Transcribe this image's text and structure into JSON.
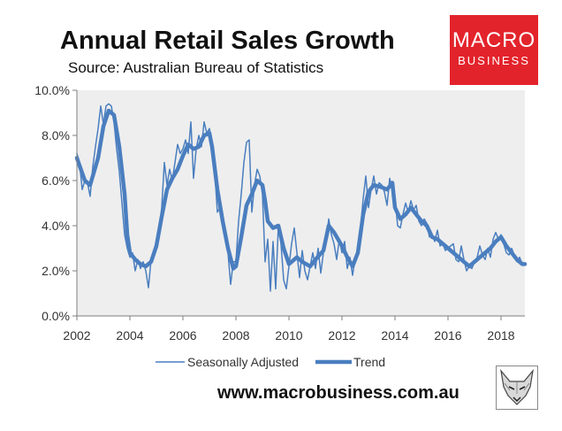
{
  "header": {
    "title": "Annual Retail Sales Growth",
    "subtitle": "Source: Australian Bureau of Statistics"
  },
  "logo": {
    "line1": "MACRO",
    "line2": "BUSINESS"
  },
  "footer": {
    "website": "www.macrobusiness.com.au"
  },
  "colors": {
    "series": "#4a7ebf",
    "plot_background": "#eeeeee",
    "axis": "#7f7f7f",
    "logo_background": "#e3232b"
  },
  "icons": {
    "mascot": "fox-head-icon"
  },
  "chart_data": {
    "type": "line",
    "title": "Annual Retail Sales Growth",
    "subtitle": "Source: Australian Bureau of Statistics",
    "xlim": [
      2002,
      2018.9
    ],
    "ylim": [
      0,
      10
    ],
    "x_ticks": [
      2002,
      2004,
      2006,
      2008,
      2010,
      2012,
      2014,
      2016,
      2018
    ],
    "x_tick_labels": [
      "2002",
      "2004",
      "2006",
      "2008",
      "2010",
      "2012",
      "2014",
      "2016",
      "2018"
    ],
    "y_ticks": [
      0,
      2,
      4,
      6,
      8,
      10
    ],
    "y_tick_labels": [
      "0.0%",
      "2.0%",
      "4.0%",
      "6.0%",
      "8.0%",
      "10.0%"
    ],
    "grid": false,
    "legend_position": "bottom",
    "series": [
      {
        "name": "Seasonally Adjusted",
        "line_width": "thin",
        "points": [
          [
            2002.0,
            7.2
          ],
          [
            2002.1,
            6.8
          ],
          [
            2002.2,
            5.6
          ],
          [
            2002.3,
            6.0
          ],
          [
            2002.4,
            5.9
          ],
          [
            2002.5,
            5.3
          ],
          [
            2002.6,
            6.6
          ],
          [
            2002.7,
            7.5
          ],
          [
            2002.8,
            8.3
          ],
          [
            2002.9,
            9.3
          ],
          [
            2003.0,
            8.5
          ],
          [
            2003.1,
            9.3
          ],
          [
            2003.2,
            9.4
          ],
          [
            2003.3,
            9.3
          ],
          [
            2003.4,
            8.6
          ],
          [
            2003.5,
            7.4
          ],
          [
            2003.6,
            6.4
          ],
          [
            2003.7,
            5.0
          ],
          [
            2003.8,
            3.6
          ],
          [
            2003.9,
            3.0
          ],
          [
            2004.0,
            2.6
          ],
          [
            2004.1,
            2.8
          ],
          [
            2004.2,
            2.0
          ],
          [
            2004.3,
            2.5
          ],
          [
            2004.4,
            2.1
          ],
          [
            2004.5,
            2.4
          ],
          [
            2004.6,
            2.0
          ],
          [
            2004.7,
            1.25
          ],
          [
            2004.8,
            2.5
          ],
          [
            2004.9,
            2.7
          ],
          [
            2005.0,
            3.4
          ],
          [
            2005.1,
            3.8
          ],
          [
            2005.2,
            4.8
          ],
          [
            2005.3,
            6.8
          ],
          [
            2005.4,
            5.8
          ],
          [
            2005.5,
            6.5
          ],
          [
            2005.6,
            6.0
          ],
          [
            2005.7,
            6.8
          ],
          [
            2005.8,
            7.6
          ],
          [
            2005.9,
            7.2
          ],
          [
            2006.0,
            7.4
          ],
          [
            2006.1,
            7.8
          ],
          [
            2006.2,
            7.2
          ],
          [
            2006.3,
            8.6
          ],
          [
            2006.4,
            6.1
          ],
          [
            2006.5,
            7.4
          ],
          [
            2006.6,
            8.0
          ],
          [
            2006.7,
            7.5
          ],
          [
            2006.8,
            8.6
          ],
          [
            2006.9,
            8.1
          ],
          [
            2007.0,
            8.3
          ],
          [
            2007.1,
            7.7
          ],
          [
            2007.2,
            6.4
          ],
          [
            2007.3,
            4.6
          ],
          [
            2007.4,
            4.8
          ],
          [
            2007.5,
            4.2
          ],
          [
            2007.6,
            3.4
          ],
          [
            2007.7,
            2.8
          ],
          [
            2007.8,
            1.4
          ],
          [
            2007.9,
            2.4
          ],
          [
            2008.0,
            2.4
          ],
          [
            2008.1,
            4.2
          ],
          [
            2008.2,
            5.4
          ],
          [
            2008.3,
            6.8
          ],
          [
            2008.4,
            7.7
          ],
          [
            2008.5,
            7.8
          ],
          [
            2008.6,
            4.6
          ],
          [
            2008.7,
            5.8
          ],
          [
            2008.8,
            6.5
          ],
          [
            2008.9,
            6.2
          ],
          [
            2009.0,
            5.4
          ],
          [
            2009.1,
            2.4
          ],
          [
            2009.2,
            3.4
          ],
          [
            2009.3,
            1.1
          ],
          [
            2009.4,
            3.3
          ],
          [
            2009.5,
            1.2
          ],
          [
            2009.6,
            4.0
          ],
          [
            2009.7,
            3.2
          ],
          [
            2009.8,
            1.6
          ],
          [
            2009.9,
            1.2
          ],
          [
            2010.0,
            2.2
          ],
          [
            2010.1,
            3.2
          ],
          [
            2010.2,
            3.9
          ],
          [
            2010.3,
            2.8
          ],
          [
            2010.4,
            1.7
          ],
          [
            2010.5,
            2.9
          ],
          [
            2010.6,
            2.0
          ],
          [
            2010.7,
            1.6
          ],
          [
            2010.8,
            2.2
          ],
          [
            2010.9,
            2.8
          ],
          [
            2011.0,
            2.1
          ],
          [
            2011.1,
            3.0
          ],
          [
            2011.2,
            1.9
          ],
          [
            2011.3,
            2.8
          ],
          [
            2011.4,
            3.3
          ],
          [
            2011.5,
            4.3
          ],
          [
            2011.6,
            3.6
          ],
          [
            2011.7,
            3.2
          ],
          [
            2011.8,
            2.5
          ],
          [
            2011.9,
            3.4
          ],
          [
            2012.0,
            2.8
          ],
          [
            2012.1,
            3.3
          ],
          [
            2012.2,
            2.1
          ],
          [
            2012.3,
            2.6
          ],
          [
            2012.4,
            1.8
          ],
          [
            2012.5,
            2.6
          ],
          [
            2012.6,
            3.0
          ],
          [
            2012.7,
            3.9
          ],
          [
            2012.8,
            5.2
          ],
          [
            2012.9,
            6.2
          ],
          [
            2013.0,
            4.8
          ],
          [
            2013.1,
            5.6
          ],
          [
            2013.2,
            6.2
          ],
          [
            2013.3,
            5.4
          ],
          [
            2013.4,
            5.9
          ],
          [
            2013.5,
            5.8
          ],
          [
            2013.6,
            5.5
          ],
          [
            2013.7,
            4.9
          ],
          [
            2013.8,
            6.1
          ],
          [
            2013.9,
            5.6
          ],
          [
            2014.0,
            5.2
          ],
          [
            2014.1,
            4.0
          ],
          [
            2014.2,
            3.9
          ],
          [
            2014.3,
            4.5
          ],
          [
            2014.4,
            5.0
          ],
          [
            2014.5,
            4.6
          ],
          [
            2014.6,
            5.1
          ],
          [
            2014.7,
            4.7
          ],
          [
            2014.8,
            4.9
          ],
          [
            2014.9,
            4.2
          ],
          [
            2015.0,
            4.0
          ],
          [
            2015.1,
            4.3
          ],
          [
            2015.2,
            4.1
          ],
          [
            2015.3,
            3.5
          ],
          [
            2015.4,
            3.6
          ],
          [
            2015.5,
            3.3
          ],
          [
            2015.6,
            3.8
          ],
          [
            2015.7,
            3.1
          ],
          [
            2015.8,
            3.2
          ],
          [
            2015.9,
            2.9
          ],
          [
            2016.0,
            3.0
          ],
          [
            2016.1,
            3.1
          ],
          [
            2016.2,
            3.2
          ],
          [
            2016.3,
            2.5
          ],
          [
            2016.4,
            2.4
          ],
          [
            2016.5,
            3.1
          ],
          [
            2016.6,
            2.5
          ],
          [
            2016.7,
            2.0
          ],
          [
            2016.8,
            2.2
          ],
          [
            2016.9,
            2.1
          ],
          [
            2017.0,
            2.4
          ],
          [
            2017.1,
            2.6
          ],
          [
            2017.2,
            3.1
          ],
          [
            2017.3,
            2.7
          ],
          [
            2017.4,
            2.5
          ],
          [
            2017.5,
            3.0
          ],
          [
            2017.6,
            2.6
          ],
          [
            2017.7,
            3.4
          ],
          [
            2017.8,
            3.7
          ],
          [
            2017.9,
            3.4
          ],
          [
            2018.0,
            3.6
          ],
          [
            2018.1,
            3.2
          ],
          [
            2018.2,
            2.8
          ],
          [
            2018.3,
            2.7
          ],
          [
            2018.4,
            3.0
          ],
          [
            2018.5,
            2.7
          ],
          [
            2018.6,
            2.4
          ],
          [
            2018.7,
            2.6
          ],
          [
            2018.8,
            2.3
          ],
          [
            2018.9,
            2.3
          ]
        ]
      },
      {
        "name": "Trend",
        "line_width": "thick",
        "points": [
          [
            2002.0,
            7.0
          ],
          [
            2002.3,
            6.0
          ],
          [
            2002.5,
            5.8
          ],
          [
            2002.8,
            7.0
          ],
          [
            2003.0,
            8.4
          ],
          [
            2003.2,
            9.1
          ],
          [
            2003.4,
            8.9
          ],
          [
            2003.6,
            7.5
          ],
          [
            2003.8,
            5.4
          ],
          [
            2003.9,
            3.6
          ],
          [
            2004.0,
            2.8
          ],
          [
            2004.2,
            2.5
          ],
          [
            2004.4,
            2.3
          ],
          [
            2004.6,
            2.2
          ],
          [
            2004.8,
            2.4
          ],
          [
            2005.0,
            3.1
          ],
          [
            2005.2,
            4.4
          ],
          [
            2005.4,
            5.6
          ],
          [
            2005.6,
            6.1
          ],
          [
            2005.8,
            6.5
          ],
          [
            2006.0,
            7.1
          ],
          [
            2006.2,
            7.6
          ],
          [
            2006.4,
            7.4
          ],
          [
            2006.6,
            7.5
          ],
          [
            2006.8,
            8.0
          ],
          [
            2007.0,
            8.1
          ],
          [
            2007.1,
            7.5
          ],
          [
            2007.3,
            5.6
          ],
          [
            2007.5,
            4.2
          ],
          [
            2007.7,
            3.0
          ],
          [
            2007.9,
            2.1
          ],
          [
            2008.0,
            2.2
          ],
          [
            2008.2,
            3.5
          ],
          [
            2008.4,
            4.9
          ],
          [
            2008.6,
            5.4
          ],
          [
            2008.8,
            6.0
          ],
          [
            2009.0,
            5.8
          ],
          [
            2009.1,
            5.1
          ],
          [
            2009.2,
            4.2
          ],
          [
            2009.4,
            3.9
          ],
          [
            2009.6,
            4.0
          ],
          [
            2009.8,
            3.0
          ],
          [
            2010.0,
            2.3
          ],
          [
            2010.3,
            2.6
          ],
          [
            2010.5,
            2.4
          ],
          [
            2010.8,
            2.2
          ],
          [
            2011.0,
            2.5
          ],
          [
            2011.3,
            2.9
          ],
          [
            2011.5,
            4.0
          ],
          [
            2011.7,
            3.7
          ],
          [
            2012.0,
            3.1
          ],
          [
            2012.2,
            2.6
          ],
          [
            2012.4,
            2.2
          ],
          [
            2012.6,
            2.8
          ],
          [
            2012.8,
            4.5
          ],
          [
            2013.0,
            5.5
          ],
          [
            2013.2,
            5.8
          ],
          [
            2013.5,
            5.7
          ],
          [
            2013.7,
            5.6
          ],
          [
            2013.9,
            5.9
          ],
          [
            2014.0,
            4.8
          ],
          [
            2014.2,
            4.3
          ],
          [
            2014.4,
            4.5
          ],
          [
            2014.6,
            4.8
          ],
          [
            2014.8,
            4.5
          ],
          [
            2015.0,
            4.2
          ],
          [
            2015.2,
            4.0
          ],
          [
            2015.4,
            3.5
          ],
          [
            2015.6,
            3.4
          ],
          [
            2015.8,
            3.2
          ],
          [
            2016.0,
            3.0
          ],
          [
            2016.2,
            2.8
          ],
          [
            2016.4,
            2.6
          ],
          [
            2016.6,
            2.4
          ],
          [
            2016.8,
            2.2
          ],
          [
            2017.0,
            2.4
          ],
          [
            2017.2,
            2.6
          ],
          [
            2017.4,
            2.8
          ],
          [
            2017.6,
            3.0
          ],
          [
            2017.8,
            3.3
          ],
          [
            2018.0,
            3.5
          ],
          [
            2018.2,
            3.1
          ],
          [
            2018.4,
            2.8
          ],
          [
            2018.6,
            2.5
          ],
          [
            2018.8,
            2.3
          ],
          [
            2018.9,
            2.3
          ]
        ]
      }
    ]
  }
}
